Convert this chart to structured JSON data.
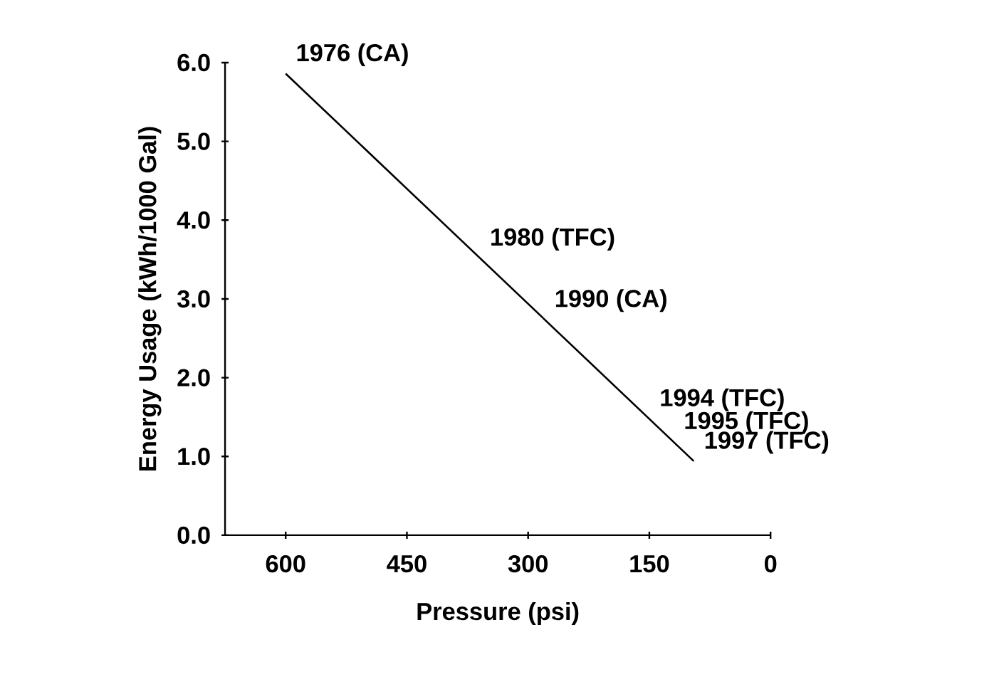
{
  "chart_data": {
    "type": "line",
    "xlabel": "Pressure (psi)",
    "ylabel": "Energy Usage (kWh/1000 Gal)",
    "xlim": [
      675,
      0
    ],
    "ylim": [
      0,
      6
    ],
    "xticks": [
      600,
      450,
      300,
      150,
      0
    ],
    "yticks": [
      {
        "value": 0,
        "label": "0.0"
      },
      {
        "value": 1,
        "label": "1.0"
      },
      {
        "value": 2,
        "label": "2.0"
      },
      {
        "value": 3,
        "label": "3.0"
      },
      {
        "value": 4,
        "label": "4.0"
      },
      {
        "value": 5,
        "label": "5.0"
      },
      {
        "value": 6,
        "label": "6.0"
      }
    ],
    "series": [
      {
        "color": "#000000",
        "x": [
          600,
          95
        ],
        "values": [
          5.86,
          0.94
        ]
      }
    ],
    "annotations": [
      {
        "text": "1976 (CA)",
        "x": 600,
        "y": 5.86
      },
      {
        "text": "1980 (TFC)",
        "x": 360,
        "y": 3.52
      },
      {
        "text": "1990 (CA)",
        "x": 280,
        "y": 2.74
      },
      {
        "text": "1994 (TFC)",
        "x": 150,
        "y": 1.48
      },
      {
        "text": "1995 (TFC)",
        "x": 120,
        "y": 1.19
      },
      {
        "text": "1997 (TFC)",
        "x": 95,
        "y": 0.94
      }
    ],
    "grid": false,
    "marker": "none",
    "line_style": "solid"
  }
}
